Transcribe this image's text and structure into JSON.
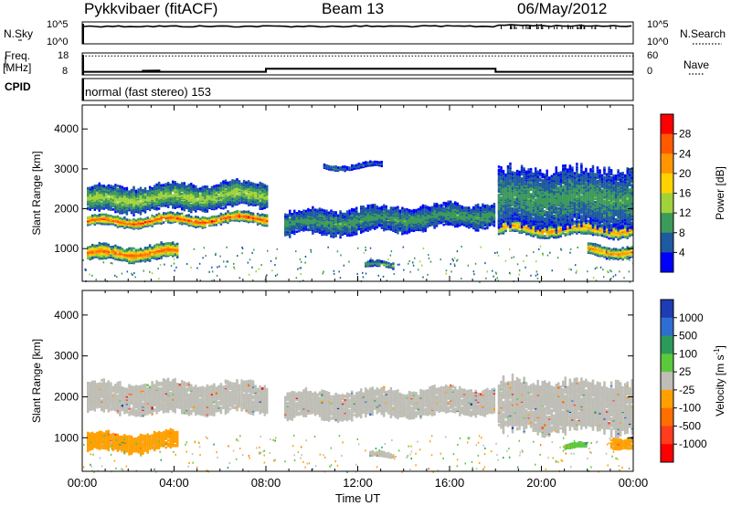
{
  "header": {
    "radar": "Pykkvibaer (fitACF)",
    "beam": "Beam 13",
    "date": "06/May/2012"
  },
  "noise_panel": {
    "left_label": "N.Sky",
    "right_label": "N.Search",
    "ticks_left": [
      "10^5",
      "10^0"
    ],
    "ticks_right": [
      "10^5",
      "10^0"
    ],
    "sky_profile": [
      0.8,
      0.8,
      0.8,
      0.8,
      0.82,
      0.8,
      0.8,
      0.8,
      0.8,
      0.8,
      0.8,
      0.8,
      0.8,
      0.8,
      0.8,
      0.8,
      0.8,
      0.8,
      0.8,
      0.8,
      0.8,
      0.8,
      0.8,
      0.8,
      0.8,
      0.8,
      0.8,
      0.8,
      0.8,
      0.8,
      0.8,
      0.8,
      0.8,
      0.8,
      0.8,
      0.8,
      0.8,
      0.8,
      0.8,
      0.8,
      0.8,
      0.8,
      0.8,
      0.8,
      0.8,
      0.8,
      0.8,
      0.8,
      0.8,
      0.8,
      0.8,
      0.8,
      0.8,
      0.8,
      0.8,
      0.8,
      0.8,
      0.8,
      0.8,
      0.8,
      0.8,
      0.8,
      0.8,
      0.8,
      0.8,
      0.8,
      0.8,
      0.8,
      0.8,
      0.8,
      0.8,
      0.8,
      0.86,
      0.86,
      0.84,
      0.86,
      0.84,
      0.85,
      0.83,
      0.84,
      0.82,
      0.82,
      0.82,
      0.82,
      0.83,
      0.82,
      0.82,
      0.82,
      0.82,
      0.82,
      0.82,
      0.82,
      0.82,
      0.82,
      0.82,
      0.82
    ]
  },
  "freq_panel": {
    "left_label": "Freq.",
    "left_unit": "[MHz]",
    "right_label": "Nave",
    "ticks_left": [
      "18",
      "8"
    ],
    "ticks_right": [
      "60",
      "0"
    ],
    "freq_ylim": [
      8,
      18
    ],
    "nave_ylim": [
      0,
      60
    ],
    "freq_steps": [
      {
        "from": 0,
        "to": 8,
        "value": 9.4
      },
      {
        "from": 8,
        "to": 18,
        "value": 10.8
      },
      {
        "from": 18,
        "to": 24,
        "value": 9.4
      }
    ],
    "nave_reference": 52
  },
  "cpid_panel": {
    "label": "CPID",
    "text": "normal (fast stereo) 153"
  },
  "chart_data": [
    {
      "type": "heatmap",
      "name": "power",
      "ylabel": "Slant Range [km]",
      "xlabel": "Time UT",
      "xlim": [
        0,
        24
      ],
      "ylim": [
        180,
        4600
      ],
      "yticks": [
        "1000",
        "2000",
        "3000",
        "4000"
      ],
      "xtick_labels": [
        "00:00",
        "04:00",
        "08:00",
        "12:00",
        "16:00",
        "20:00",
        "00:00"
      ],
      "colorbar": {
        "label": "Power [dB]",
        "ticks": [
          "28",
          "24",
          "20",
          "16",
          "12",
          "8",
          "4"
        ],
        "colors": [
          "#ff0000",
          "#ff5a00",
          "#ff9600",
          "#ffd200",
          "#a0d23c",
          "#3c9a5a",
          "#1e5aa0",
          "#0000ff"
        ]
      },
      "bands": [
        {
          "from": 0.2,
          "to": 8.0,
          "center_start": 1700,
          "center_end": 1800,
          "halfwidth": 120,
          "level": 0.92
        },
        {
          "from": 0.2,
          "to": 8.0,
          "center_start": 2250,
          "center_end": 2400,
          "halfwidth": 300,
          "level": 0.45
        },
        {
          "from": 0.2,
          "to": 4.2,
          "center_start": 900,
          "center_end": 950,
          "halfwidth": 170,
          "level": 0.88
        },
        {
          "from": 8.8,
          "to": 18.0,
          "center_start": 1650,
          "center_end": 1850,
          "halfwidth": 130,
          "level": 0.6
        },
        {
          "from": 8.8,
          "to": 18.0,
          "center_start": 1650,
          "center_end": 1900,
          "halfwidth": 280,
          "level": 0.3
        },
        {
          "from": 18.1,
          "to": 24.0,
          "center_start": 1550,
          "center_end": 1500,
          "halfwidth": 150,
          "level": 0.75
        },
        {
          "from": 18.1,
          "to": 24.0,
          "center_start": 2300,
          "center_end": 2300,
          "halfwidth": 700,
          "level": 0.3
        },
        {
          "from": 22.0,
          "to": 24.0,
          "center_start": 1000,
          "center_end": 950,
          "halfwidth": 130,
          "level": 0.8
        },
        {
          "from": 12.3,
          "to": 13.5,
          "center_start": 600,
          "center_end": 600,
          "halfwidth": 60,
          "level": 0.35
        },
        {
          "from": 10.5,
          "to": 13.0,
          "center_start": 3100,
          "center_end": 3100,
          "halfwidth": 50,
          "level": 0.2
        }
      ]
    },
    {
      "type": "heatmap",
      "name": "velocity",
      "ylabel": "Slant Range [km]",
      "xlabel": "Time UT",
      "xlim": [
        0,
        24
      ],
      "ylim": [
        180,
        4600
      ],
      "yticks": [
        "1000",
        "2000",
        "3000",
        "4000"
      ],
      "xtick_labels": [
        "00:00",
        "04:00",
        "08:00",
        "12:00",
        "16:00",
        "20:00",
        "00:00"
      ],
      "colorbar": {
        "label": "Velocity [m s",
        "label_sup": "-1",
        "label_end": "]",
        "ticks": [
          "1000",
          "500",
          "100",
          "25",
          "-25",
          "-100",
          "-500",
          "-1000"
        ],
        "colors": [
          "#1e3cb4",
          "#2e6ed2",
          "#2c9a5a",
          "#5cc83c",
          "#bebeb6",
          "#ffa000",
          "#ff6e00",
          "#ff3c1e",
          "#ff0000"
        ]
      },
      "bands": [
        {
          "from": 0.2,
          "to": 8.0,
          "center_start": 2000,
          "center_end": 2000,
          "halfwidth": 350,
          "level": 0.5
        },
        {
          "from": 8.8,
          "to": 18.0,
          "center_start": 1800,
          "center_end": 1950,
          "halfwidth": 300,
          "level": 0.5
        },
        {
          "from": 18.1,
          "to": 24.0,
          "center_start": 1800,
          "center_end": 1800,
          "halfwidth": 600,
          "level": 0.5
        },
        {
          "from": 0.2,
          "to": 4.2,
          "center_start": 900,
          "center_end": 950,
          "halfwidth": 200,
          "level": 0.4
        },
        {
          "from": 12.5,
          "to": 13.5,
          "center_start": 580,
          "center_end": 580,
          "halfwidth": 50,
          "level": 0.5
        },
        {
          "from": 23.0,
          "to": 24.0,
          "center_start": 950,
          "center_end": 900,
          "halfwidth": 120,
          "level": 0.38
        },
        {
          "from": 21.0,
          "to": 22.0,
          "center_start": 800,
          "center_end": 800,
          "halfwidth": 60,
          "level": 0.6
        }
      ]
    }
  ]
}
